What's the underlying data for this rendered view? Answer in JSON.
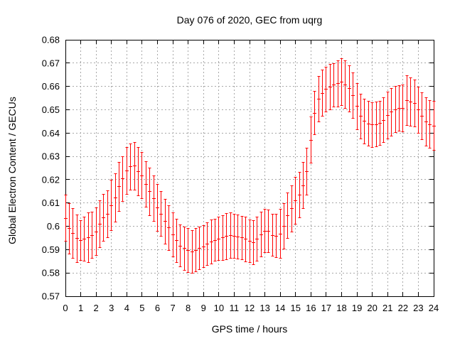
{
  "chart": {
    "title": "Day 076 of 2020, GEC from uqrg",
    "xlabel": "GPS time / hours",
    "ylabel": "Global Electron Content / GECUs"
  },
  "colors": {
    "data": "#ff0000",
    "grid": "#a8a8a8",
    "border": "#000000",
    "text": "#000000",
    "background": "#ffffff"
  },
  "chart_data": {
    "type": "errorbar",
    "title": "Day 076 of 2020, GEC from uqrg",
    "xlabel": "GPS time / hours",
    "ylabel": "Global Electron Content / GECUs",
    "xlim": [
      0,
      24
    ],
    "ylim": [
      0.57,
      0.68
    ],
    "grid": true,
    "x_ticks": [
      0,
      1,
      2,
      3,
      4,
      5,
      6,
      7,
      8,
      9,
      10,
      11,
      12,
      13,
      14,
      15,
      16,
      17,
      18,
      19,
      20,
      21,
      22,
      23,
      24
    ],
    "x_tick_labels": [
      "0",
      "1",
      "2",
      "3",
      "4",
      "5",
      "6",
      "7",
      "8",
      "9",
      "10",
      "11",
      "12",
      "13",
      "14",
      "15",
      "16",
      "17",
      "18",
      "19",
      "20",
      "21",
      "22",
      "23",
      "24"
    ],
    "y_ticks": [
      0.57,
      0.58,
      0.59,
      0.6,
      0.61,
      0.62,
      0.63,
      0.64,
      0.65,
      0.66,
      0.67,
      0.68
    ],
    "y_tick_labels": [
      "0.57",
      "0.58",
      "0.59",
      "0.6",
      "0.61",
      "0.62",
      "0.63",
      "0.64",
      "0.65",
      "0.66",
      "0.67",
      "0.68"
    ],
    "series": [
      {
        "name": "GEC",
        "color": "#ff0000",
        "x": [
          0,
          0.25,
          0.5,
          0.75,
          1,
          1.25,
          1.5,
          1.75,
          2,
          2.25,
          2.5,
          2.75,
          3,
          3.25,
          3.5,
          3.75,
          4,
          4.25,
          4.5,
          4.75,
          5,
          5.25,
          5.5,
          5.75,
          6,
          6.25,
          6.5,
          6.75,
          7,
          7.25,
          7.5,
          7.75,
          8,
          8.25,
          8.5,
          8.75,
          9,
          9.25,
          9.5,
          9.75,
          10,
          10.25,
          10.5,
          10.75,
          11,
          11.25,
          11.5,
          11.75,
          12,
          12.25,
          12.5,
          12.75,
          13,
          13.25,
          13.5,
          13.75,
          14,
          14.25,
          14.5,
          14.75,
          15,
          15.25,
          15.5,
          15.75,
          16,
          16.25,
          16.5,
          16.75,
          17,
          17.25,
          17.5,
          17.75,
          18,
          18.25,
          18.5,
          18.75,
          19,
          19.25,
          19.5,
          19.75,
          20,
          20.25,
          20.5,
          20.75,
          21,
          21.25,
          21.5,
          21.75,
          22,
          22.25,
          22.5,
          22.75,
          23,
          23.25,
          23.5,
          23.75,
          24
        ],
        "mean": [
          0.6035,
          0.599,
          0.597,
          0.5947,
          0.594,
          0.5945,
          0.5952,
          0.5962,
          0.5977,
          0.601,
          0.6036,
          0.6052,
          0.609,
          0.6122,
          0.617,
          0.6203,
          0.6238,
          0.6255,
          0.6258,
          0.6235,
          0.6218,
          0.618,
          0.6148,
          0.612,
          0.608,
          0.6053,
          0.602,
          0.5993,
          0.5963,
          0.5938,
          0.5916,
          0.5905,
          0.5896,
          0.589,
          0.5898,
          0.5905,
          0.5912,
          0.5924,
          0.5934,
          0.594,
          0.5946,
          0.595,
          0.5956,
          0.596,
          0.5957,
          0.5954,
          0.595,
          0.5944,
          0.5936,
          0.593,
          0.5945,
          0.5965,
          0.598,
          0.5978,
          0.5962,
          0.5958,
          0.5968,
          0.6,
          0.6045,
          0.6075,
          0.611,
          0.6135,
          0.6175,
          0.6235,
          0.637,
          0.6485,
          0.6545,
          0.657,
          0.6588,
          0.6598,
          0.6605,
          0.6612,
          0.6618,
          0.6608,
          0.659,
          0.656,
          0.6515,
          0.6472,
          0.645,
          0.644,
          0.6435,
          0.6437,
          0.6442,
          0.6455,
          0.6475,
          0.649,
          0.65,
          0.6505,
          0.6507,
          0.6539,
          0.6534,
          0.6528,
          0.6499,
          0.6473,
          0.6448,
          0.6437,
          0.643
        ],
        "err": [
          0.0099,
          0.0109,
          0.0107,
          0.0102,
          0.0086,
          0.0095,
          0.0106,
          0.0099,
          0.0102,
          0.01,
          0.0101,
          0.0102,
          0.0108,
          0.0103,
          0.0105,
          0.0097,
          0.01,
          0.01,
          0.0103,
          0.0104,
          0.01,
          0.0098,
          0.0102,
          0.0098,
          0.01,
          0.0097,
          0.0095,
          0.0096,
          0.0094,
          0.0093,
          0.0091,
          0.0093,
          0.0094,
          0.0092,
          0.0094,
          0.0091,
          0.009,
          0.0092,
          0.0094,
          0.009,
          0.0093,
          0.0096,
          0.01,
          0.0097,
          0.0095,
          0.0094,
          0.0092,
          0.0095,
          0.0091,
          0.0093,
          0.0094,
          0.0096,
          0.0094,
          0.0092,
          0.0091,
          0.0093,
          0.0104,
          0.0098,
          0.0097,
          0.0099,
          0.0101,
          0.0097,
          0.0098,
          0.01,
          0.0099,
          0.0093,
          0.0098,
          0.0099,
          0.0096,
          0.0097,
          0.0094,
          0.0099,
          0.01,
          0.0102,
          0.0098,
          0.0097,
          0.0099,
          0.0096,
          0.0095,
          0.0097,
          0.0096,
          0.0095,
          0.0094,
          0.0096,
          0.01,
          0.0102,
          0.0099,
          0.0097,
          0.0101,
          0.0106,
          0.0103,
          0.0101,
          0.0099,
          0.01,
          0.0104,
          0.0103,
          0.0105
        ]
      }
    ]
  }
}
